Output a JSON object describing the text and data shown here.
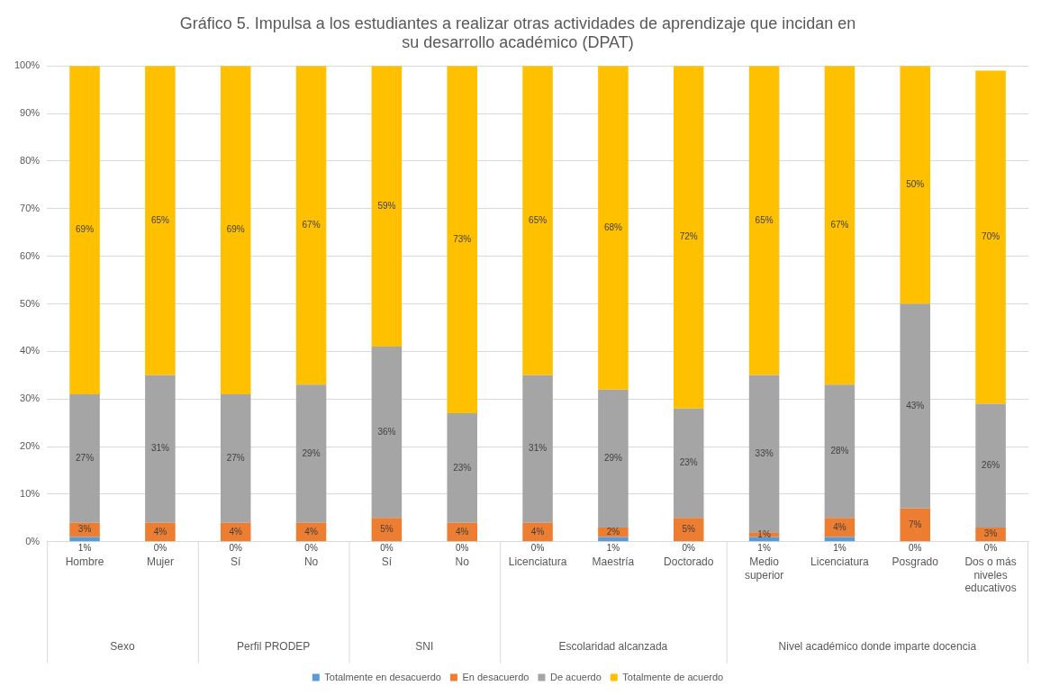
{
  "chart_data": {
    "type": "bar",
    "stacked": true,
    "title": "Gráfico 5. Impulsa a los estudiantes a realizar otras actividades de aprendizaje que incidan en su desarrollo académico (DPAT)",
    "categories": [
      "Hombre",
      "Mujer",
      "Sí",
      "No",
      "Sí",
      "No",
      "Licenciatura",
      "Maestría",
      "Doctorado",
      "Medio superior",
      "Licenciatura",
      "Posgrado",
      "Dos o más niveles educativos"
    ],
    "series": [
      {
        "name": "Totalmente en desacuerdo",
        "color": "#5b9bd5",
        "values": [
          1,
          0,
          0,
          0,
          0,
          0,
          0,
          1,
          0,
          1,
          1,
          0,
          0
        ],
        "value_labels": [
          "1%",
          "0%",
          "0%",
          "0%",
          "0%",
          "0%",
          "0%",
          "1%",
          "0%",
          "1%",
          "1%",
          "0%",
          "0%"
        ]
      },
      {
        "name": "En desacuerdo",
        "color": "#ed7d31",
        "values": [
          3,
          4,
          4,
          4,
          5,
          4,
          4,
          2,
          5,
          1,
          4,
          7,
          3
        ],
        "value_labels": [
          "3%",
          "4%",
          "4%",
          "4%",
          "5%",
          "4%",
          "4%",
          "2%",
          "5%",
          "1%",
          "4%",
          "7%",
          "3%"
        ]
      },
      {
        "name": "De acuerdo",
        "color": "#a5a5a5",
        "values": [
          27,
          31,
          27,
          29,
          36,
          23,
          31,
          29,
          23,
          33,
          28,
          43,
          26
        ],
        "value_labels": [
          "27%",
          "31%",
          "27%",
          "29%",
          "36%",
          "23%",
          "31%",
          "29%",
          "23%",
          "33%",
          "28%",
          "43%",
          "26%"
        ]
      },
      {
        "name": "Totalmente de acuerdo",
        "color": "#ffc000",
        "values": [
          69,
          65,
          69,
          67,
          59,
          73,
          65,
          68,
          72,
          65,
          67,
          50,
          70
        ],
        "value_labels": [
          "69%",
          "65%",
          "69%",
          "67%",
          "59%",
          "73%",
          "65%",
          "68%",
          "72%",
          "65%",
          "67%",
          "50%",
          "70%"
        ]
      }
    ],
    "ylim": [
      0,
      100
    ],
    "yticks": [
      {
        "value": 0,
        "label": "0%"
      },
      {
        "value": 10,
        "label": "10%"
      },
      {
        "value": 20,
        "label": "20%"
      },
      {
        "value": 30,
        "label": "30%"
      },
      {
        "value": 40,
        "label": "40%"
      },
      {
        "value": 50,
        "label": "50%"
      },
      {
        "value": 60,
        "label": "60%"
      },
      {
        "value": 70,
        "label": "70%"
      },
      {
        "value": 80,
        "label": "80%"
      },
      {
        "value": 90,
        "label": "90%"
      },
      {
        "value": 100,
        "label": "100%"
      }
    ],
    "grid": "y",
    "legend": "bottom",
    "annotations": [
      "Sexo",
      "Perfil PRODEP",
      "SNI",
      "Escolaridad alcanzada",
      "Nivel académico donde imparte docencia"
    ]
  }
}
